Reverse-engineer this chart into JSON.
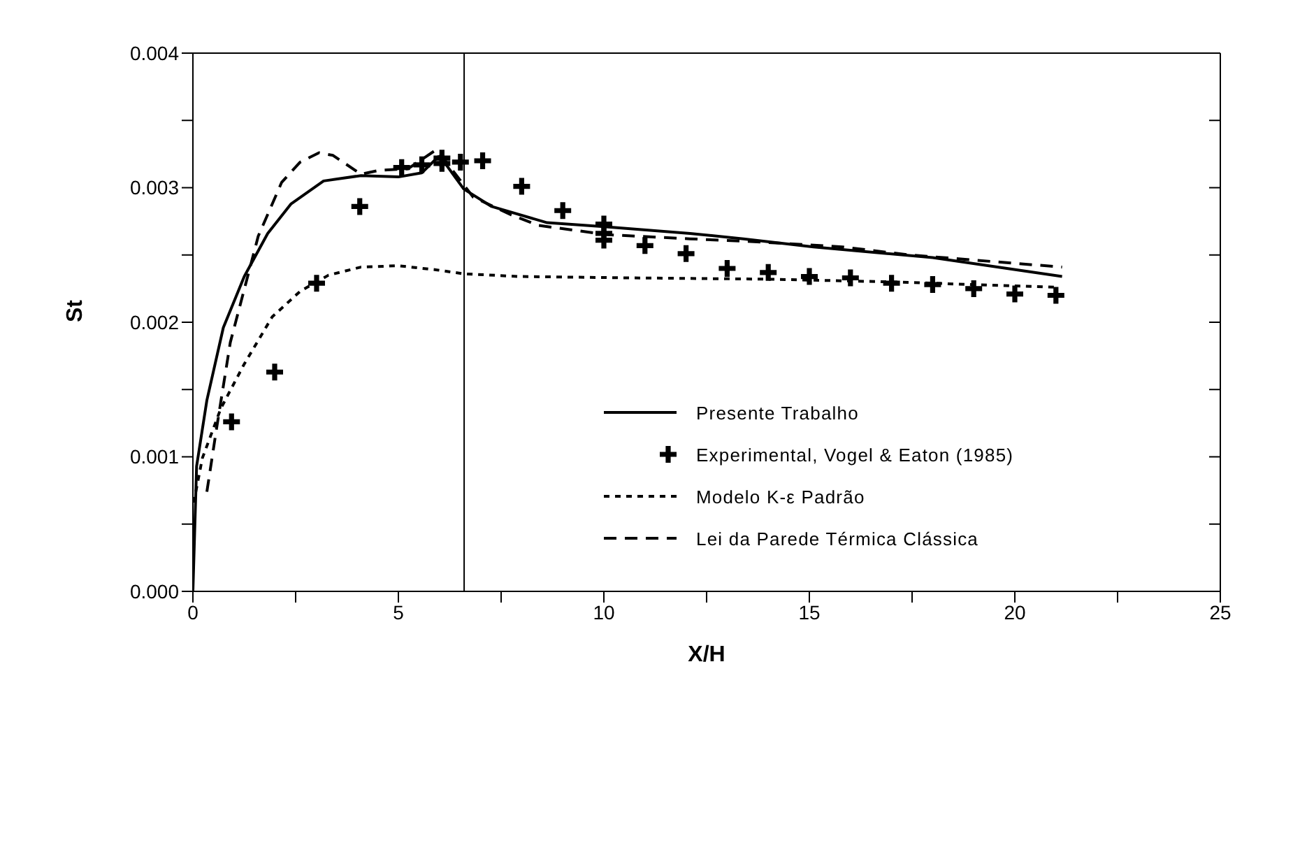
{
  "chart_data": {
    "type": "line",
    "xlabel": "X/H",
    "ylabel": "St",
    "xlim": [
      0,
      25
    ],
    "xticks": [
      0,
      {
        "value": 2.5,
        "label": null
      },
      5,
      {
        "value": 7.5,
        "label": null
      },
      10,
      {
        "value": 12.5,
        "label": null
      },
      15,
      {
        "value": 17.5,
        "label": null
      },
      20,
      {
        "value": 22.5,
        "label": null
      },
      25
    ],
    "ylim": [
      0,
      0.004
    ],
    "yticks": [
      {
        "value": 0,
        "label": "0.000"
      },
      {
        "value": 0.0005,
        "label": null
      },
      {
        "value": 0.001,
        "label": "0.001"
      },
      {
        "value": 0.0015,
        "label": null
      },
      {
        "value": 0.002,
        "label": "0.002"
      },
      {
        "value": 0.0025,
        "label": null
      },
      {
        "value": 0.003,
        "label": "0.003"
      },
      {
        "value": 0.0035,
        "label": null
      },
      {
        "value": 0.004,
        "label": "0.004"
      }
    ],
    "grid": false,
    "legend": "right",
    "ref_lines": [
      {
        "axis": "x",
        "value": 6.6,
        "color": "#000000"
      }
    ],
    "series": [
      {
        "name": "Presente Trabalho",
        "color": "#000000",
        "line_style": "solid",
        "marker": "none",
        "x": [
          0,
          0.09,
          0.34,
          0.74,
          1.25,
          1.82,
          2.39,
          3.18,
          4.09,
          5,
          5.57,
          5.97,
          6.14,
          6.59,
          7.27,
          8.62,
          10,
          12.1,
          13.4,
          15.1,
          18,
          21.15
        ],
        "values": [
          0,
          0.00093,
          0.00142,
          0.00196,
          0.00234,
          0.00266,
          0.00288,
          0.00305,
          0.00309,
          0.00308,
          0.00311,
          0.00323,
          0.00318,
          0.00299,
          0.00286,
          0.00274,
          0.00271,
          0.00266,
          0.00262,
          0.00256,
          0.00248,
          0.00234
        ]
      },
      {
        "name": "Experimental, Vogel & Eaton (1985)",
        "type": "scatter",
        "color": "#000000",
        "marker": "cross",
        "x": [
          0.94,
          1.99,
          3.01,
          4.06,
          5.08,
          5.57,
          6.06,
          6.06,
          6.51,
          7.05,
          8,
          9,
          10,
          10,
          10,
          11,
          12,
          13,
          14,
          15,
          16,
          17,
          18,
          19,
          20,
          21
        ],
        "values": [
          0.00126,
          0.00163,
          0.00229,
          0.00286,
          0.00315,
          0.00317,
          0.00322,
          0.00318,
          0.00319,
          0.0032,
          0.00301,
          0.00283,
          0.00273,
          0.00266,
          0.00261,
          0.00257,
          0.00251,
          0.0024,
          0.00237,
          0.00234,
          0.00233,
          0.00229,
          0.00228,
          0.00225,
          0.00221,
          0.0022
        ]
      },
      {
        "name": "Modelo K-ε Padrão",
        "color": "#000000",
        "line_style": "dotted",
        "marker": "none",
        "x": [
          0.02,
          0.23,
          0.68,
          1.25,
          1.93,
          2.61,
          3.3,
          4.09,
          5,
          5.91,
          6.59,
          7.94,
          10.6,
          14,
          17,
          21
        ],
        "values": [
          0.00066,
          0.00099,
          0.00136,
          0.00169,
          0.00204,
          0.00223,
          0.00235,
          0.00241,
          0.00242,
          0.00239,
          0.00236,
          0.00234,
          0.00233,
          0.00232,
          0.0023,
          0.00226
        ]
      },
      {
        "name": "Lei da Parede Térmica Clássica",
        "color": "#000000",
        "line_style": "dashed",
        "marker": "none",
        "x": [
          0.34,
          0.57,
          0.91,
          1.59,
          2.16,
          2.61,
          3.07,
          3.41,
          4.09,
          4.55,
          5.23,
          5.91,
          6.14,
          6.82,
          7.73,
          8.4,
          10.1,
          12.1,
          13.57,
          15.8,
          17.45,
          21.15
        ],
        "values": [
          0.00074,
          0.0012,
          0.00185,
          0.00264,
          0.00304,
          0.00319,
          0.00326,
          0.00324,
          0.0031,
          0.00313,
          0.00314,
          0.00328,
          0.0032,
          0.00293,
          0.0028,
          0.00272,
          0.00265,
          0.00262,
          0.0026,
          0.00256,
          0.0025,
          0.00241
        ]
      }
    ]
  }
}
